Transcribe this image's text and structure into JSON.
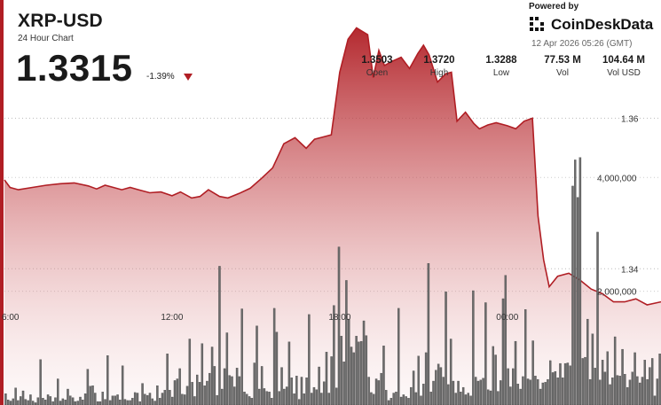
{
  "header": {
    "symbol": "XRP-USD",
    "subtitle": "24 Hour Chart",
    "price": "1.3315",
    "change": "-1.39%",
    "change_direction": "down",
    "change_color": "#b01e24"
  },
  "branding": {
    "powered_by": "Powered by",
    "name": "CoinDeskData",
    "timestamp": "12 Apr 2026 05:26 (GMT)",
    "logo_icon": "coindesk-logo-icon"
  },
  "stats": [
    {
      "value": "1.3503",
      "label": "Open"
    },
    {
      "value": "1.3720",
      "label": "High"
    },
    {
      "value": "1.3288",
      "label": "Low"
    },
    {
      "value": "77.53 M",
      "label": "Vol"
    },
    {
      "value": "104.64 M",
      "label": "Vol USD"
    }
  ],
  "chart_data": {
    "type": "area",
    "x_ticks": [
      {
        "label": "6:00",
        "hour": 6
      },
      {
        "label": "12:00",
        "hour": 12
      },
      {
        "label": "18:00",
        "hour": 18
      },
      {
        "label": "00:00",
        "hour": 24
      }
    ],
    "x_range_hours": [
      6,
      29.5
    ],
    "price_ylim": [
      1.3219,
      1.3757
    ],
    "price_ticks": [
      {
        "label": "1.36",
        "value": 1.36
      },
      {
        "label": "1.34",
        "value": 1.34
      }
    ],
    "volume_ylim": [
      0,
      7120000
    ],
    "volume_ticks": [
      {
        "label": "4,000,000",
        "value": 4000000
      },
      {
        "label": "2,000,000",
        "value": 2000000
      }
    ],
    "price_series": {
      "hours": [
        6.0,
        6.2,
        6.5,
        7.0,
        7.5,
        8.0,
        8.5,
        9.0,
        9.3,
        9.6,
        9.9,
        10.2,
        10.5,
        10.8,
        11.2,
        11.6,
        12.0,
        12.3,
        12.7,
        13.0,
        13.3,
        13.7,
        14.0,
        14.4,
        14.8,
        15.2,
        15.6,
        16.0,
        16.4,
        16.8,
        17.1,
        17.4,
        17.7,
        18.0,
        18.3,
        18.6,
        19.0,
        19.2,
        19.4,
        19.6,
        19.9,
        20.2,
        20.5,
        20.8,
        21.0,
        21.2,
        21.5,
        21.8,
        22.0,
        22.2,
        22.5,
        22.8,
        23.0,
        23.3,
        23.6,
        24.0,
        24.3,
        24.6,
        24.9,
        25.1,
        25.3,
        25.5,
        25.8,
        26.2,
        26.6,
        27.0,
        27.4,
        27.8,
        28.2,
        28.6,
        29.0,
        29.5
      ],
      "values": [
        1.3518,
        1.3508,
        1.3505,
        1.3508,
        1.3511,
        1.3513,
        1.3514,
        1.351,
        1.3506,
        1.3511,
        1.3508,
        1.3505,
        1.3508,
        1.3505,
        1.3501,
        1.3502,
        1.3497,
        1.3502,
        1.3494,
        1.3496,
        1.3505,
        1.3496,
        1.3494,
        1.35,
        1.3507,
        1.352,
        1.3534,
        1.3566,
        1.3574,
        1.356,
        1.3572,
        1.3575,
        1.3578,
        1.3661,
        1.3705,
        1.372,
        1.3711,
        1.3654,
        1.369,
        1.367,
        1.3676,
        1.3681,
        1.3666,
        1.3686,
        1.3697,
        1.3684,
        1.3648,
        1.3659,
        1.3661,
        1.3596,
        1.3608,
        1.3593,
        1.3586,
        1.3591,
        1.3594,
        1.359,
        1.3586,
        1.3596,
        1.36,
        1.347,
        1.3412,
        1.3376,
        1.339,
        1.3394,
        1.3385,
        1.3373,
        1.3367,
        1.3356,
        1.3356,
        1.336,
        1.3352,
        1.3356
      ]
    },
    "volume_series": {
      "values": [
        200000,
        90000,
        70000,
        110000,
        300000,
        80000,
        150000,
        250000,
        100000,
        80000,
        180000,
        70000,
        40000,
        130000,
        800000,
        120000,
        90000,
        180000,
        150000,
        60000,
        130000,
        460000,
        70000,
        110000,
        90000,
        280000,
        160000,
        130000,
        60000,
        70000,
        140000,
        90000,
        200000,
        630000,
        330000,
        340000,
        210000,
        60000,
        60000,
        230000,
        100000,
        870000,
        80000,
        160000,
        160000,
        180000,
        90000,
        690000,
        100000,
        80000,
        80000,
        120000,
        220000,
        210000,
        60000,
        380000,
        190000,
        170000,
        210000,
        110000,
        70000,
        340000,
        120000,
        210000,
        260000,
        900000,
        260000,
        140000,
        430000,
        460000,
        640000,
        190000,
        180000,
        330000,
        1160000,
        400000,
        150000,
        530000,
        400000,
        1080000,
        340000,
        420000,
        560000,
        1020000,
        680000,
        170000,
        2440000,
        280000,
        640000,
        1270000,
        520000,
        500000,
        320000,
        650000,
        500000,
        1690000,
        230000,
        190000,
        150000,
        120000,
        740000,
        1390000,
        280000,
        680000,
        290000,
        240000,
        230000,
        120000,
        1700000,
        1280000,
        240000,
        660000,
        280000,
        320000,
        1110000,
        480000,
        200000,
        510000,
        100000,
        490000,
        200000,
        480000,
        1590000,
        210000,
        310000,
        270000,
        670000,
        210000,
        410000,
        930000,
        210000,
        850000,
        1750000,
        300000,
        2780000,
        1210000,
        760000,
        2190000,
        1510000,
        1020000,
        920000,
        1210000,
        1110000,
        1120000,
        1480000,
        1220000,
        490000,
        220000,
        190000,
        460000,
        430000,
        560000,
        1040000,
        260000,
        80000,
        120000,
        210000,
        230000,
        1700000,
        140000,
        180000,
        150000,
        120000,
        310000,
        600000,
        220000,
        860000,
        160000,
        370000,
        920000,
        2490000,
        230000,
        420000,
        610000,
        720000,
        660000,
        490000,
        1990000,
        360000,
        1160000,
        420000,
        210000,
        420000,
        230000,
        310000,
        180000,
        210000,
        160000,
        2010000,
        490000,
        420000,
        440000,
        470000,
        1800000,
        270000,
        250000,
        1030000,
        880000,
        240000,
        430000,
        1870000,
        2280000,
        640000,
        320000,
        640000,
        1120000,
        370000,
        280000,
        500000,
        1680000,
        460000,
        440000,
        1130000,
        510000,
        450000,
        280000,
        390000,
        400000,
        450000,
        780000,
        570000,
        590000,
        480000,
        730000,
        480000,
        730000,
        740000,
        690000,
        3850000,
        4310000,
        3650000,
        4350000,
        820000,
        840000,
        1510000,
        450000,
        1250000,
        650000,
        3040000,
        440000,
        790000,
        580000,
        940000,
        360000,
        480000,
        1200000,
        520000,
        510000,
        980000,
        540000,
        310000,
        440000,
        580000,
        920000,
        500000,
        390000,
        490000,
        790000,
        450000,
        660000,
        820000,
        160000,
        460000,
        900000
      ]
    },
    "area_color": "#b01e24",
    "volume_bar_color": "#6c6c6c"
  }
}
